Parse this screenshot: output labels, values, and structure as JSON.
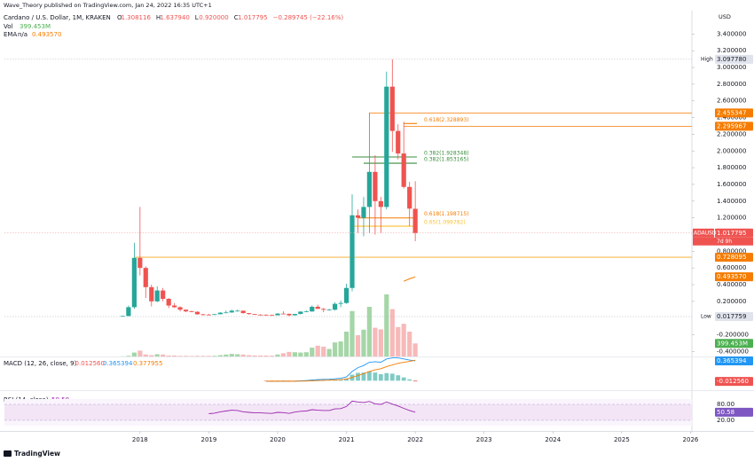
{
  "header": {
    "publisher": "Wave_Theory published on TradingView.com, Jan 24, 2022 16:35 UTC+1",
    "brand": "TradingView"
  },
  "chart_data": {
    "type": "candlestick",
    "symbol": "Cardano / U.S. Dollar, 1M, KRAKEN",
    "legend": [
      {
        "key": "O",
        "value": "1.308116"
      },
      {
        "key": "H",
        "value": "1.637940"
      },
      {
        "key": "L",
        "value": "0.920000"
      },
      {
        "key": "C",
        "value": "1.017795"
      },
      {
        "key": "",
        "value": "−0.289745 (−22.16%)"
      }
    ],
    "currency": "USD",
    "up_color": "#26a69a",
    "down_color": "#ef5350",
    "grid": false,
    "x": [
      2017.75,
      2017.833,
      2017.917,
      2018,
      2018.083,
      2018.167,
      2018.25,
      2018.333,
      2018.417,
      2018.5,
      2018.583,
      2018.667,
      2018.75,
      2018.833,
      2018.917,
      2019,
      2019.083,
      2019.167,
      2019.25,
      2019.333,
      2019.417,
      2019.5,
      2019.583,
      2019.667,
      2019.75,
      2019.833,
      2019.917,
      2020,
      2020.083,
      2020.167,
      2020.25,
      2020.333,
      2020.417,
      2020.5,
      2020.583,
      2020.667,
      2020.75,
      2020.833,
      2020.917,
      2021,
      2021.083,
      2021.167,
      2021.25,
      2021.333,
      2021.417,
      2021.5,
      2021.583,
      2021.667,
      2021.75,
      2021.833,
      2021.917,
      2022
    ],
    "open": [
      0.025,
      0.025,
      0.13,
      0.72,
      0.6,
      0.37,
      0.2,
      0.33,
      0.23,
      0.15,
      0.13,
      0.1,
      0.08,
      0.075,
      0.045,
      0.041,
      0.039,
      0.046,
      0.064,
      0.067,
      0.088,
      0.088,
      0.059,
      0.048,
      0.04,
      0.039,
      0.036,
      0.033,
      0.053,
      0.05,
      0.033,
      0.049,
      0.077,
      0.079,
      0.135,
      0.11,
      0.1,
      0.1,
      0.17,
      0.18,
      0.36,
      1.23,
      1.2,
      1.33,
      1.75,
      1.4,
      1.33,
      2.77,
      2.24,
      1.97,
      1.57,
      1.308116
    ],
    "high": [
      0.03,
      0.15,
      0.9,
      1.33,
      0.62,
      0.4,
      0.38,
      0.36,
      0.24,
      0.18,
      0.14,
      0.1,
      0.09,
      0.08,
      0.05,
      0.05,
      0.05,
      0.07,
      0.09,
      0.1,
      0.1,
      0.09,
      0.06,
      0.05,
      0.047,
      0.046,
      0.04,
      0.06,
      0.08,
      0.055,
      0.05,
      0.08,
      0.09,
      0.15,
      0.16,
      0.12,
      0.11,
      0.19,
      0.21,
      0.41,
      1.48,
      1.3,
      1.45,
      2.46,
      1.95,
      1.45,
      2.95,
      3.09778,
      2.32,
      2.35,
      1.63,
      1.63794
    ],
    "low": [
      0.017759,
      0.02,
      0.11,
      0.51,
      0.24,
      0.14,
      0.19,
      0.2,
      0.12,
      0.12,
      0.08,
      0.07,
      0.07,
      0.04,
      0.03,
      0.037,
      0.037,
      0.044,
      0.06,
      0.063,
      0.077,
      0.054,
      0.04,
      0.037,
      0.034,
      0.034,
      0.03,
      0.032,
      0.048,
      0.02,
      0.03,
      0.045,
      0.07,
      0.075,
      0.11,
      0.07,
      0.09,
      0.09,
      0.13,
      0.17,
      0.32,
      1.02,
      0.98,
      1.02,
      1.0,
      1.02,
      1.3,
      1.99,
      1.9,
      1.55,
      1.1,
      0.92
    ],
    "close": [
      0.025,
      0.13,
      0.72,
      0.6,
      0.37,
      0.2,
      0.33,
      0.23,
      0.15,
      0.13,
      0.1,
      0.08,
      0.075,
      0.045,
      0.041,
      0.039,
      0.046,
      0.064,
      0.067,
      0.088,
      0.088,
      0.059,
      0.048,
      0.04,
      0.039,
      0.036,
      0.033,
      0.053,
      0.05,
      0.033,
      0.049,
      0.077,
      0.079,
      0.135,
      0.11,
      0.1,
      0.1,
      0.17,
      0.18,
      0.36,
      1.23,
      1.2,
      1.33,
      1.75,
      1.4,
      1.33,
      2.77,
      2.24,
      1.97,
      1.57,
      1.31,
      1.017795
    ],
    "xlim": [
      2016.03,
      2026.02
    ],
    "xticks": [
      2018,
      2019,
      2020,
      2021,
      2022,
      2023,
      2024,
      2025,
      2026
    ],
    "ylim": [
      -0.46,
      3.68
    ],
    "yticks": [
      {
        "value": -0.4,
        "label": "-0.400000"
      },
      {
        "value": -0.2,
        "label": "-0.200000"
      },
      {
        "value": 0.2,
        "label": "0.200000"
      },
      {
        "value": 0.4,
        "label": "0.400000"
      },
      {
        "value": 0.6,
        "label": "0.600000"
      },
      {
        "value": 0.8,
        "label": "0.800000"
      },
      {
        "value": 1.2,
        "label": "1.200000"
      },
      {
        "value": 1.4,
        "label": "1.400000"
      },
      {
        "value": 1.6,
        "label": "1.600000"
      },
      {
        "value": 1.8,
        "label": "1.800000"
      },
      {
        "value": 2.0,
        "label": "2.000000"
      },
      {
        "value": 2.2,
        "label": "2.200000"
      },
      {
        "value": 2.4,
        "label": "2.400000"
      },
      {
        "value": 2.6,
        "label": "2.600000"
      },
      {
        "value": 2.8,
        "label": "2.800000"
      },
      {
        "value": 3.0,
        "label": "3.000000"
      },
      {
        "value": 3.2,
        "label": "3.200000"
      },
      {
        "value": 3.4,
        "label": "3.400000"
      }
    ],
    "volume": {
      "name": "Vol",
      "up_color": "#a5d6a7",
      "down_color": "#f7b9b9",
      "values": [
        5,
        20,
        120,
        180,
        60,
        40,
        70,
        60,
        30,
        30,
        20,
        20,
        15,
        20,
        20,
        20,
        20,
        40,
        60,
        80,
        70,
        60,
        40,
        30,
        30,
        30,
        25,
        60,
        100,
        140,
        130,
        120,
        130,
        270,
        330,
        300,
        230,
        430,
        460,
        760,
        1390,
        650,
        820,
        1520,
        880,
        830,
        1900,
        1450,
        900,
        1000,
        760,
        399.453
      ]
    },
    "ema": {
      "name": "EMA",
      "params": "n/a",
      "color": "#f57c00",
      "values": [
        null,
        null,
        null,
        null,
        null,
        null,
        null,
        null,
        null,
        null,
        null,
        null,
        null,
        null,
        null,
        null,
        null,
        null,
        null,
        null,
        null,
        null,
        null,
        null,
        null,
        null,
        null,
        null,
        null,
        null,
        null,
        null,
        null,
        null,
        null,
        null,
        null,
        null,
        null,
        null,
        null,
        null,
        null,
        null,
        null,
        null,
        null,
        null,
        null,
        0.44,
        0.47,
        0.49357
      ]
    },
    "hlines": [
      {
        "value": 2.455347,
        "color": "#f57c00"
      },
      {
        "value": 2.295967,
        "color": "#f57c00"
      },
      {
        "value": 0.728095,
        "color": "#f5a623"
      }
    ],
    "fibs": [
      {
        "label": "0.618(2.328893)",
        "value": 2.328893,
        "color": "#f57c00"
      },
      {
        "label": "0.382(1.928348)",
        "value": 1.928348,
        "color": "#388e3c"
      },
      {
        "label": "0.382(1.853165)",
        "value": 1.853165,
        "color": "#388e3c"
      },
      {
        "label": "0.618(1.198715)",
        "value": 1.198715,
        "color": "#f57c00"
      },
      {
        "label": "0.65(1.099782)",
        "value": 1.099782,
        "color": "#fbc02d"
      }
    ],
    "badges": [
      {
        "pane": "price",
        "value": 3.09778,
        "label": "3.097780",
        "tag": "High",
        "color": "#e0e3eb",
        "text_color": "#131722"
      },
      {
        "pane": "price",
        "value": 2.455347,
        "color": "#f57c00",
        "text_color": "#ffffff"
      },
      {
        "pane": "price",
        "value": 2.295967,
        "color": "#f57c00",
        "text_color": "#ffffff"
      },
      {
        "pane": "price",
        "value": 1.017795,
        "tag": "ADAUSD",
        "sub": "7d 9h",
        "color": "#ef5350",
        "text_color": "#ffffff"
      },
      {
        "pane": "price",
        "value": 0.728095,
        "color": "#f57c00",
        "text_color": "#ffffff"
      },
      {
        "pane": "price",
        "value": 0.49357,
        "label": "0.493570",
        "color": "#f57c00",
        "text_color": "#ffffff"
      },
      {
        "pane": "price",
        "value": 0.017759,
        "tag": "Low",
        "color": "#e0e3eb",
        "text_color": "#131722"
      },
      {
        "pane": "volume",
        "value": 399.453,
        "label": "399.453M",
        "color": "#4caf50",
        "text_color": "#ffffff"
      },
      {
        "pane": "macd",
        "value": 0.365394,
        "color": "#2196f3",
        "text_color": "#ffffff"
      },
      {
        "pane": "macd",
        "value": -0.01256,
        "label": "-0.012560",
        "color": "#ef5350",
        "text_color": "#ffffff"
      },
      {
        "pane": "rsi",
        "value": 50.58,
        "color": "#7e57c2",
        "text_color": "#ffffff"
      }
    ],
    "macd": {
      "title": "MACD (12, 26, close, 9)",
      "ylim": [
        -0.15,
        0.43
      ],
      "readout": [
        {
          "value": -0.01256,
          "label": "-0.012560",
          "color": "#ef5350"
        },
        {
          "value": 0.365394,
          "color": "#2196f3"
        },
        {
          "value": 0.377955,
          "color": "#f57c00"
        }
      ],
      "histogram": {
        "color": "#80cbc4",
        "negative_color": "#ef5350",
        "values": [
          null,
          null,
          null,
          null,
          null,
          null,
          null,
          null,
          null,
          null,
          null,
          null,
          null,
          null,
          null,
          null,
          null,
          null,
          null,
          null,
          null,
          null,
          null,
          null,
          null,
          -0.002,
          -0.003,
          -0.001,
          0.001,
          -0.001,
          0.001,
          0.005,
          0.008,
          0.014,
          0.018,
          0.017,
          0.016,
          0.02,
          0.024,
          0.039,
          0.111,
          0.145,
          0.15,
          0.17,
          0.15,
          0.12,
          0.14,
          0.13,
          0.1,
          0.06,
          0.025,
          -0.01256
        ]
      },
      "macd_line": {
        "color": "#2196f3",
        "values": [
          null,
          null,
          null,
          null,
          null,
          null,
          null,
          null,
          null,
          null,
          null,
          null,
          null,
          null,
          null,
          null,
          null,
          null,
          null,
          null,
          null,
          null,
          null,
          null,
          null,
          -0.01,
          -0.012,
          -0.01,
          -0.008,
          -0.01,
          -0.008,
          -0.003,
          0.002,
          0.012,
          0.02,
          0.024,
          0.026,
          0.035,
          0.045,
          0.07,
          0.17,
          0.24,
          0.28,
          0.34,
          0.35,
          0.34,
          0.4,
          0.42,
          0.42,
          0.4,
          0.38,
          0.365394
        ]
      },
      "signal_line": {
        "color": "#f57c00",
        "values": [
          null,
          null,
          null,
          null,
          null,
          null,
          null,
          null,
          null,
          null,
          null,
          null,
          null,
          null,
          null,
          null,
          null,
          null,
          null,
          null,
          null,
          null,
          null,
          null,
          null,
          -0.008,
          -0.009,
          -0.009,
          -0.009,
          -0.009,
          -0.009,
          -0.008,
          -0.006,
          -0.002,
          0.002,
          0.007,
          0.01,
          0.015,
          0.021,
          0.031,
          0.059,
          0.095,
          0.13,
          0.17,
          0.2,
          0.22,
          0.26,
          0.29,
          0.32,
          0.34,
          0.355,
          0.377955
        ]
      }
    },
    "rsi": {
      "title": "RSI (14, close)",
      "color": "#9c27b0",
      "band_color": "#f3e5f5",
      "ylim": [
        0,
        100
      ],
      "yticks": [
        {
          "value": 80,
          "label": "80.00"
        },
        {
          "value": 20,
          "label": "20.00"
        }
      ],
      "values": [
        null,
        null,
        null,
        null,
        null,
        null,
        null,
        null,
        null,
        null,
        null,
        null,
        null,
        null,
        null,
        45,
        47,
        52,
        55,
        58,
        57,
        52,
        50,
        48,
        48,
        47,
        46,
        50,
        49,
        46,
        51,
        54,
        55,
        60,
        58,
        57,
        57,
        63,
        64,
        72,
        92,
        89,
        87,
        91,
        82,
        80,
        89,
        81,
        74,
        65,
        57,
        50.58
      ]
    }
  }
}
